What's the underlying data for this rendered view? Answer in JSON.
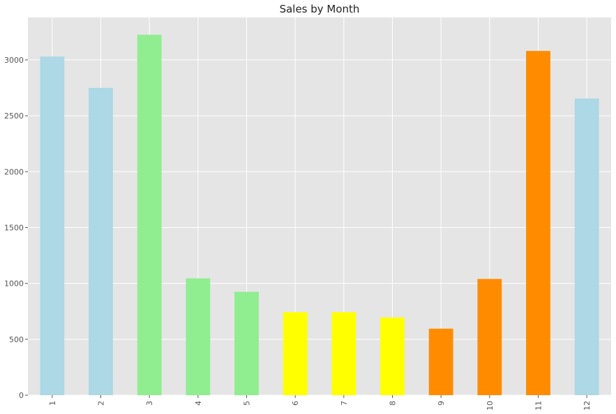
{
  "chart_data": {
    "type": "bar",
    "title": "Sales by Month",
    "xlabel": "",
    "ylabel": "",
    "categories": [
      "1",
      "2",
      "3",
      "4",
      "5",
      "6",
      "7",
      "8",
      "9",
      "10",
      "11",
      "12"
    ],
    "values": [
      3030,
      2750,
      3225,
      1045,
      925,
      742,
      742,
      695,
      595,
      1040,
      3080,
      2655
    ],
    "colors": [
      "#add8e6",
      "#add8e6",
      "#90ee90",
      "#90ee90",
      "#90ee90",
      "#ffff00",
      "#ffff00",
      "#ffff00",
      "#ff8c00",
      "#ff8c00",
      "#ff8c00",
      "#add8e6"
    ],
    "ylim": [
      0,
      3380
    ],
    "yticks": [
      0,
      500,
      1000,
      1500,
      2000,
      2500,
      3000
    ],
    "grid": true,
    "background_color": "#e5e5e5",
    "grid_color": "#ffffff"
  }
}
